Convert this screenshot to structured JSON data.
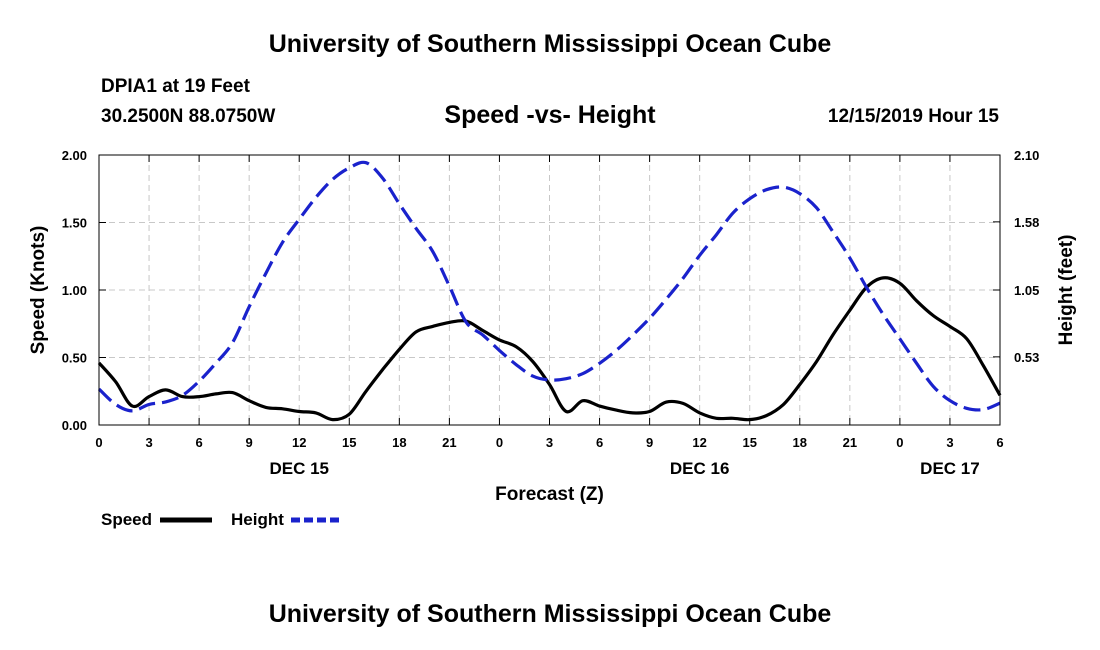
{
  "header": {
    "title": "University of Southern Mississippi Ocean Cube"
  },
  "station": {
    "name": "DPIA1 at 19 Feet",
    "coords": "30.2500N 88.0750W"
  },
  "run": {
    "time": "12/15/2019 Hour 15"
  },
  "footer": {
    "title": "University of Southern Mississippi Ocean Cube"
  },
  "chart_data": {
    "type": "line",
    "title": "Speed -vs- Height",
    "xlabel": "Forecast (Z)",
    "ylabel": "Speed (Knots)",
    "y2label": "Height (feet)",
    "x_range_hours": [
      0,
      54
    ],
    "ylim": [
      0,
      2.0
    ],
    "y2lim": [
      0,
      2.1
    ],
    "x_tick_hours": [
      0,
      3,
      6,
      9,
      12,
      15,
      18,
      21,
      24,
      27,
      30,
      33,
      36,
      39,
      42,
      45,
      48,
      51,
      54
    ],
    "x_tick_labels": [
      "0",
      "3",
      "6",
      "9",
      "12",
      "15",
      "18",
      "21",
      "0",
      "3",
      "6",
      "9",
      "12",
      "15",
      "18",
      "21",
      "0",
      "3",
      "6"
    ],
    "date_labels": [
      {
        "hour": 12,
        "label": "DEC 15"
      },
      {
        "hour": 36,
        "label": "DEC 16"
      },
      {
        "hour": 51,
        "label": "DEC 17"
      }
    ],
    "y_ticks": [
      0,
      0.5,
      1.0,
      1.5,
      2.0
    ],
    "y_tick_labels": [
      "0.00",
      "0.50",
      "1.00",
      "1.50",
      "2.00"
    ],
    "y2_ticks": [
      0.53,
      1.05,
      1.58,
      2.1
    ],
    "y2_tick_labels": [
      "0.53",
      "1.05",
      "1.58",
      "2.10"
    ],
    "legend": {
      "position": "bottom-left",
      "entries": [
        "Speed",
        "Height"
      ]
    },
    "grid": true,
    "series": [
      {
        "name": "Speed",
        "axis": "left",
        "color": "#000000",
        "dash": "solid",
        "hours": [
          0,
          1,
          2,
          3,
          4,
          5,
          6,
          7,
          8,
          9,
          10,
          11,
          12,
          13,
          14,
          15,
          16,
          17,
          18,
          19,
          20,
          21,
          22,
          23,
          24,
          25,
          26,
          27,
          28,
          29,
          30,
          31,
          32,
          33,
          34,
          35,
          36,
          37,
          38,
          39,
          40,
          41,
          42,
          43,
          44,
          45,
          46,
          47,
          48,
          49,
          50,
          51,
          52,
          53,
          54
        ],
        "values": [
          0.46,
          0.32,
          0.14,
          0.21,
          0.26,
          0.21,
          0.21,
          0.23,
          0.24,
          0.18,
          0.13,
          0.12,
          0.1,
          0.09,
          0.04,
          0.08,
          0.25,
          0.41,
          0.56,
          0.69,
          0.73,
          0.76,
          0.77,
          0.7,
          0.63,
          0.58,
          0.47,
          0.3,
          0.1,
          0.18,
          0.14,
          0.11,
          0.09,
          0.1,
          0.17,
          0.16,
          0.09,
          0.05,
          0.05,
          0.04,
          0.07,
          0.15,
          0.3,
          0.47,
          0.67,
          0.85,
          1.02,
          1.09,
          1.05,
          0.92,
          0.81,
          0.73,
          0.64,
          0.44,
          0.22
        ]
      },
      {
        "name": "Height",
        "axis": "right",
        "color": "#1a22cc",
        "dash": "dashed",
        "hours": [
          0,
          1,
          2,
          3,
          4,
          5,
          6,
          7,
          8,
          9,
          10,
          11,
          12,
          13,
          14,
          15,
          16,
          17,
          18,
          19,
          20,
          21,
          22,
          23,
          24,
          25,
          26,
          27,
          28,
          29,
          30,
          31,
          32,
          33,
          34,
          35,
          36,
          37,
          38,
          39,
          40,
          41,
          42,
          43,
          44,
          45,
          46,
          47,
          48,
          49,
          50,
          51,
          52,
          53,
          54
        ],
        "values": [
          0.28,
          0.16,
          0.11,
          0.16,
          0.18,
          0.23,
          0.34,
          0.48,
          0.64,
          0.92,
          1.18,
          1.42,
          1.6,
          1.77,
          1.91,
          2.0,
          2.04,
          1.92,
          1.72,
          1.53,
          1.35,
          1.08,
          0.8,
          0.7,
          0.58,
          0.47,
          0.38,
          0.35,
          0.36,
          0.4,
          0.48,
          0.58,
          0.7,
          0.83,
          0.98,
          1.14,
          1.32,
          1.48,
          1.65,
          1.76,
          1.83,
          1.85,
          1.8,
          1.69,
          1.5,
          1.3,
          1.07,
          0.86,
          0.67,
          0.48,
          0.3,
          0.19,
          0.13,
          0.12,
          0.17
        ]
      }
    ]
  }
}
